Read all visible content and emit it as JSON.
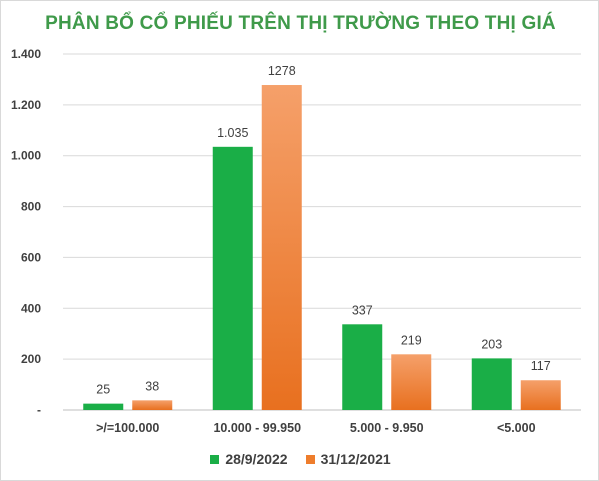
{
  "chart_data": {
    "type": "bar",
    "title": "PHÂN BỔ CỔ PHIẾU TRÊN THỊ TRƯỜNG THEO THỊ GIÁ",
    "categories": [
      ">/=100.000",
      "10.000 - 99.950",
      "5.000 - 9.950",
      "<5.000"
    ],
    "series": [
      {
        "name": "28/9/2022",
        "values": [
          25,
          1035,
          337,
          203
        ],
        "labels": [
          "25",
          "1.035",
          "337",
          "203"
        ],
        "color": "#1aae47"
      },
      {
        "name": "31/12/2021",
        "values": [
          38,
          1278,
          219,
          117
        ],
        "labels": [
          "38",
          "1278",
          "219",
          "117"
        ],
        "color": "#ee7d2c"
      }
    ],
    "ylim": [
      0,
      1400
    ],
    "yticks": [
      0,
      200,
      400,
      600,
      800,
      1000,
      1200,
      1400
    ],
    "ytick_labels": [
      "-",
      "200",
      "400",
      "600",
      "800",
      "1.000",
      "1.200",
      "1.400"
    ],
    "grid": true,
    "legend": "bottom",
    "xlabel": "",
    "ylabel": ""
  }
}
